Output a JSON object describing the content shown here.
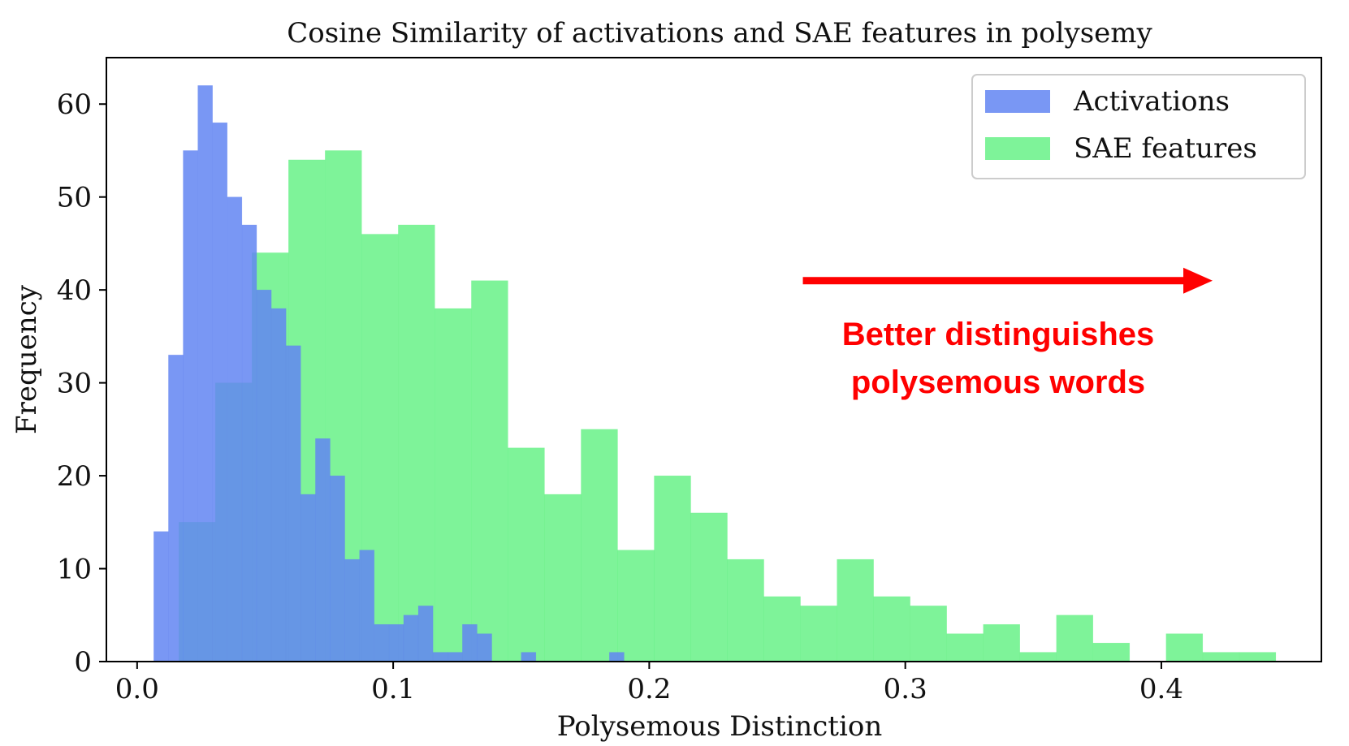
{
  "chart_data": {
    "type": "histogram",
    "title": "Cosine Similarity of activations and SAE features in polysemy",
    "xlabel": "Polysemous Distinction",
    "ylabel": "Frequency",
    "xlim": [
      -0.012,
      0.4625
    ],
    "ylim": [
      0,
      65
    ],
    "xticks": [
      0.0,
      0.1,
      0.2,
      0.3,
      0.4
    ],
    "xtick_labels": [
      "0.0",
      "0.1",
      "0.2",
      "0.3",
      "0.4"
    ],
    "yticks": [
      0,
      10,
      20,
      30,
      40,
      50,
      60
    ],
    "ytick_labels": [
      "0",
      "10",
      "20",
      "30",
      "40",
      "50",
      "60"
    ],
    "legend": {
      "location": "top-right"
    },
    "annotation": {
      "lines": [
        "Better distinguishes",
        "polysemous words"
      ],
      "color": "#ff0000",
      "x_start": 0.26,
      "x_end": 0.42,
      "y": 41
    },
    "series": [
      {
        "name": "Activations",
        "color": "#6185f2",
        "alpha": 0.85,
        "bin_start": 0.0065,
        "bin_width": 0.00574,
        "values": [
          14,
          33,
          55,
          62,
          58,
          50,
          47,
          40,
          38,
          34,
          18,
          24,
          20,
          11,
          12,
          4,
          4,
          5,
          6,
          1,
          1,
          4,
          3,
          0,
          0,
          1,
          0,
          0,
          0,
          0,
          0,
          1
        ]
      },
      {
        "name": "SAE features",
        "color": "#5ef07f",
        "alpha": 0.8,
        "bin_start": 0.0163,
        "bin_width": 0.01428,
        "values": [
          15,
          30,
          44,
          54,
          55,
          46,
          47,
          38,
          41,
          23,
          18,
          25,
          12,
          20,
          16,
          11,
          7,
          6,
          11,
          7,
          6,
          3,
          4,
          1,
          5,
          2,
          0,
          3,
          1,
          1
        ]
      }
    ]
  }
}
